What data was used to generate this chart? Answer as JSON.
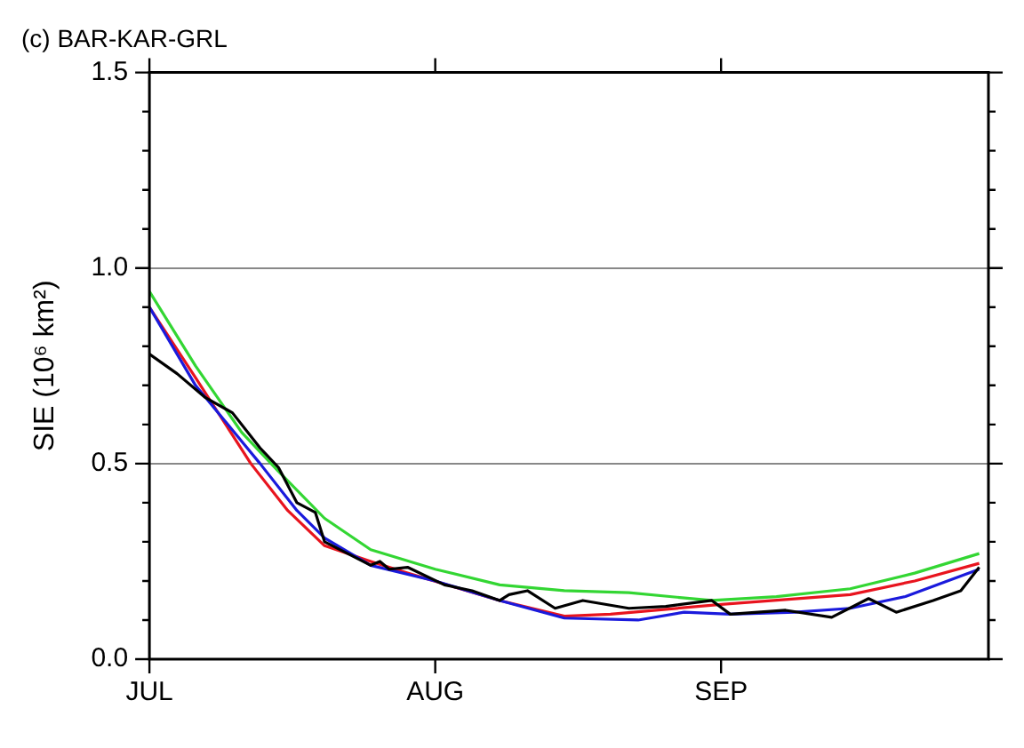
{
  "chart_data": {
    "type": "line",
    "title": "(c) BAR-KAR-GRL",
    "ylabel": "SIE (10⁶ km²)",
    "xlim": [
      "--07-01",
      "--09-30"
    ],
    "xticks": [
      {
        "value": "--07-01",
        "label": "JUL"
      },
      {
        "value": "--08-01",
        "label": "AUG"
      },
      {
        "value": "--09-01",
        "label": "SEP"
      }
    ],
    "ylim": [
      0,
      1.5
    ],
    "yticks": [
      {
        "value": 0,
        "label": "0.0"
      },
      {
        "value": 0.1,
        "label": null
      },
      {
        "value": 0.2,
        "label": null
      },
      {
        "value": 0.3,
        "label": null
      },
      {
        "value": 0.4,
        "label": null
      },
      {
        "value": 0.5,
        "label": "0.5"
      },
      {
        "value": 0.6,
        "label": null
      },
      {
        "value": 0.7,
        "label": null
      },
      {
        "value": 0.8,
        "label": null
      },
      {
        "value": 0.9,
        "label": null
      },
      {
        "value": 1,
        "label": "1.0"
      },
      {
        "value": 1.1,
        "label": null
      },
      {
        "value": 1.2,
        "label": null
      },
      {
        "value": 1.3,
        "label": null
      },
      {
        "value": 1.4,
        "label": null
      },
      {
        "value": 1.5,
        "label": "1.5"
      }
    ],
    "grid": "y",
    "legend": false,
    "marker": "none",
    "line_style": "solid",
    "series": [
      {
        "color": "#000000",
        "x": [
          "--07-01",
          "--07-04",
          "--07-07",
          "--07-10",
          "--07-13",
          "--07-15",
          "--07-17",
          "--07-19",
          "--07-20",
          "--07-25",
          "--07-26",
          "--07-27",
          "--07-29",
          "--08-02",
          "--08-05",
          "--08-08",
          "--08-09",
          "--08-11",
          "--08-14",
          "--08-17",
          "--08-22",
          "--08-26",
          "--08-31",
          "--09-02",
          "--09-08",
          "--09-13",
          "--09-17",
          "--09-20",
          "--09-24",
          "--09-27",
          "--09-29"
        ],
        "values": [
          0.78,
          0.73,
          0.67,
          0.63,
          0.54,
          0.49,
          0.4,
          0.375,
          0.3,
          0.24,
          0.25,
          0.23,
          0.235,
          0.19,
          0.175,
          0.15,
          0.165,
          0.175,
          0.13,
          0.15,
          0.13,
          0.135,
          0.15,
          0.115,
          0.125,
          0.107,
          0.155,
          0.12,
          0.15,
          0.175,
          0.235
        ]
      },
      {
        "color": "#1a1adc",
        "x": [
          "--07-01",
          "--07-06",
          "--07-13",
          "--07-17",
          "--07-20",
          "--07-25",
          "--08-01",
          "--08-08",
          "--08-15",
          "--08-23",
          "--08-28",
          "--09-02",
          "--09-09",
          "--09-15",
          "--09-21",
          "--09-29"
        ],
        "values": [
          0.9,
          0.7,
          0.5,
          0.38,
          0.31,
          0.24,
          0.2,
          0.15,
          0.105,
          0.1,
          0.12,
          0.115,
          0.12,
          0.13,
          0.16,
          0.23
        ]
      },
      {
        "color": "#e8141e",
        "x": [
          "--07-01",
          "--07-06",
          "--07-12",
          "--07-16",
          "--07-20",
          "--07-25",
          "--07-29",
          "--08-08",
          "--08-15",
          "--08-20",
          "--09-01",
          "--09-15",
          "--09-22",
          "--09-29"
        ],
        "values": [
          0.9,
          0.72,
          0.5,
          0.38,
          0.29,
          0.25,
          0.22,
          0.15,
          0.11,
          0.115,
          0.14,
          0.165,
          0.2,
          0.245
        ]
      },
      {
        "color": "#33d633",
        "x": [
          "--07-01",
          "--07-06",
          "--07-11",
          "--07-15",
          "--07-20",
          "--07-25",
          "--08-01",
          "--08-08",
          "--08-15",
          "--08-22",
          "--08-31",
          "--09-07",
          "--09-15",
          "--09-22",
          "--09-29"
        ],
        "values": [
          0.94,
          0.75,
          0.58,
          0.48,
          0.36,
          0.28,
          0.23,
          0.19,
          0.175,
          0.17,
          0.15,
          0.16,
          0.18,
          0.22,
          0.27
        ]
      }
    ]
  }
}
